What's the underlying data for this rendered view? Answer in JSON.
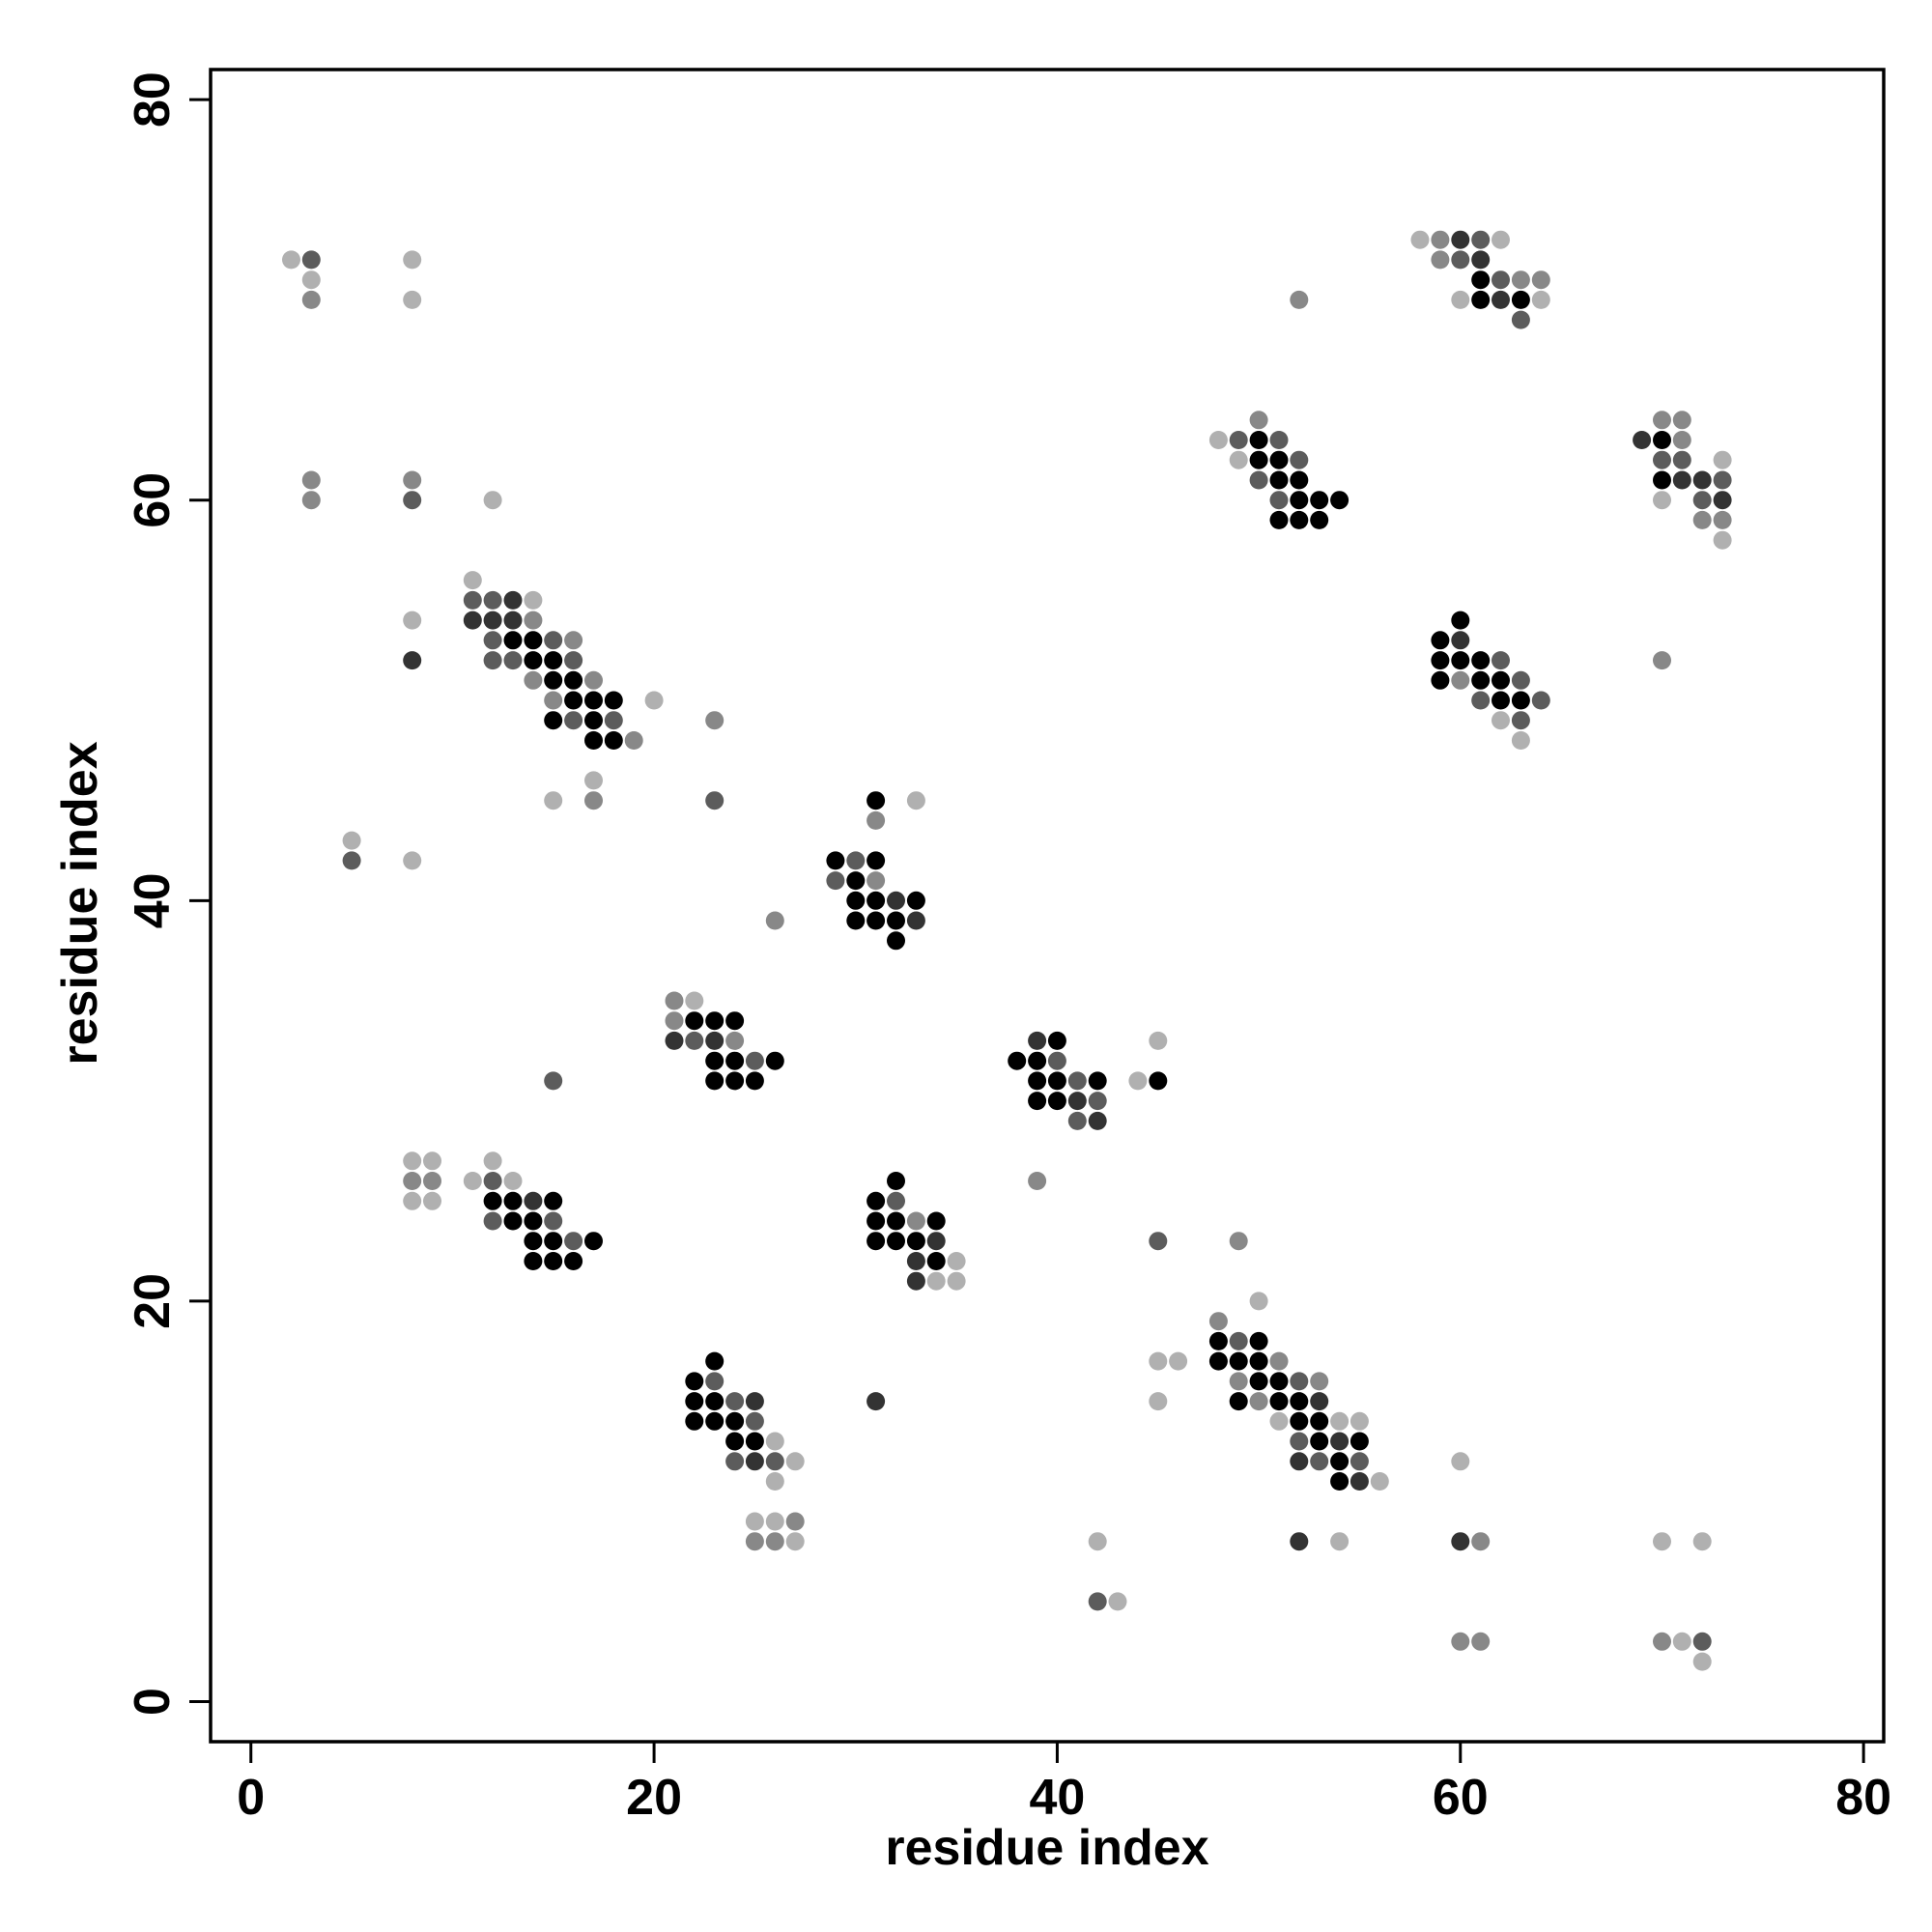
{
  "chart_data": {
    "type": "scatter",
    "title": "",
    "xlabel": "residue index",
    "ylabel": "residue index",
    "xlim": [
      -2,
      81
    ],
    "ylim": [
      -2,
      81.5
    ],
    "xticks": [
      0,
      20,
      40,
      60,
      80
    ],
    "yticks": [
      0,
      20,
      40,
      60,
      80
    ],
    "grid": false,
    "legend": "none",
    "shade_colors": {
      "1": "#000000",
      "2": "#333333",
      "3": "#5c5c5c",
      "4": "#888888",
      "5": "#b0b0b0"
    },
    "points": [
      [
        2,
        72,
        5
      ],
      [
        3,
        72,
        3
      ],
      [
        3,
        71,
        5
      ],
      [
        3,
        70,
        4
      ],
      [
        8,
        72,
        5
      ],
      [
        8,
        70,
        5
      ],
      [
        3,
        61,
        4
      ],
      [
        3,
        60,
        4
      ],
      [
        8,
        61,
        4
      ],
      [
        8,
        60,
        3
      ],
      [
        12,
        60,
        5
      ],
      [
        8,
        54,
        5
      ],
      [
        8,
        52,
        2
      ],
      [
        5,
        43,
        5
      ],
      [
        5,
        42,
        3
      ],
      [
        8,
        42,
        5
      ],
      [
        11,
        56,
        5
      ],
      [
        11,
        55,
        3
      ],
      [
        12,
        55,
        3
      ],
      [
        13,
        55,
        2
      ],
      [
        14,
        55,
        5
      ],
      [
        11,
        54,
        2
      ],
      [
        12,
        54,
        2
      ],
      [
        13,
        54,
        2
      ],
      [
        14,
        54,
        4
      ],
      [
        12,
        53,
        3
      ],
      [
        13,
        53,
        1
      ],
      [
        14,
        53,
        1
      ],
      [
        15,
        53,
        3
      ],
      [
        16,
        53,
        4
      ],
      [
        12,
        52,
        3
      ],
      [
        13,
        52,
        3
      ],
      [
        14,
        52,
        1
      ],
      [
        15,
        52,
        1
      ],
      [
        16,
        52,
        3
      ],
      [
        14,
        51,
        4
      ],
      [
        15,
        51,
        1
      ],
      [
        16,
        51,
        1
      ],
      [
        17,
        51,
        4
      ],
      [
        15,
        50,
        4
      ],
      [
        16,
        50,
        1
      ],
      [
        17,
        50,
        1
      ],
      [
        18,
        50,
        1
      ],
      [
        20,
        50,
        5
      ],
      [
        15,
        49,
        1
      ],
      [
        16,
        49,
        3
      ],
      [
        17,
        49,
        1
      ],
      [
        18,
        49,
        3
      ],
      [
        23,
        49,
        4
      ],
      [
        17,
        48,
        1
      ],
      [
        18,
        48,
        1
      ],
      [
        19,
        48,
        4
      ],
      [
        17,
        46,
        5
      ],
      [
        15,
        45,
        5
      ],
      [
        17,
        45,
        4
      ],
      [
        23,
        45,
        3
      ],
      [
        31,
        45,
        1
      ],
      [
        33,
        45,
        5
      ],
      [
        31,
        44,
        4
      ],
      [
        29,
        42,
        1
      ],
      [
        30,
        42,
        3
      ],
      [
        31,
        42,
        1
      ],
      [
        29,
        41,
        3
      ],
      [
        30,
        41,
        1
      ],
      [
        31,
        41,
        4
      ],
      [
        30,
        40,
        1
      ],
      [
        31,
        40,
        1
      ],
      [
        32,
        40,
        2
      ],
      [
        33,
        40,
        1
      ],
      [
        30,
        39,
        1
      ],
      [
        31,
        39,
        1
      ],
      [
        32,
        39,
        1
      ],
      [
        33,
        39,
        2
      ],
      [
        26,
        39,
        4
      ],
      [
        32,
        38,
        1
      ],
      [
        21,
        35,
        4
      ],
      [
        22,
        35,
        5
      ],
      [
        21,
        34,
        4
      ],
      [
        22,
        34,
        1
      ],
      [
        23,
        34,
        1
      ],
      [
        24,
        34,
        1
      ],
      [
        21,
        33,
        2
      ],
      [
        22,
        33,
        3
      ],
      [
        23,
        33,
        2
      ],
      [
        24,
        33,
        4
      ],
      [
        23,
        32,
        1
      ],
      [
        24,
        32,
        1
      ],
      [
        25,
        32,
        3
      ],
      [
        26,
        32,
        1
      ],
      [
        23,
        31,
        1
      ],
      [
        24,
        31,
        1
      ],
      [
        25,
        31,
        1
      ],
      [
        15,
        31,
        3
      ],
      [
        39,
        33,
        2
      ],
      [
        40,
        33,
        1
      ],
      [
        45,
        33,
        5
      ],
      [
        38,
        32,
        1
      ],
      [
        39,
        32,
        1
      ],
      [
        40,
        32,
        3
      ],
      [
        39,
        31,
        1
      ],
      [
        40,
        31,
        1
      ],
      [
        41,
        31,
        3
      ],
      [
        42,
        31,
        1
      ],
      [
        44,
        31,
        5
      ],
      [
        45,
        31,
        1
      ],
      [
        39,
        30,
        1
      ],
      [
        40,
        30,
        1
      ],
      [
        41,
        30,
        2
      ],
      [
        42,
        30,
        3
      ],
      [
        41,
        29,
        3
      ],
      [
        42,
        29,
        2
      ],
      [
        39,
        26,
        4
      ],
      [
        8,
        27,
        5
      ],
      [
        9,
        27,
        5
      ],
      [
        12,
        27,
        5
      ],
      [
        8,
        26,
        4
      ],
      [
        9,
        26,
        4
      ],
      [
        11,
        26,
        5
      ],
      [
        12,
        26,
        3
      ],
      [
        13,
        26,
        5
      ],
      [
        8,
        25,
        5
      ],
      [
        9,
        25,
        5
      ],
      [
        12,
        25,
        1
      ],
      [
        13,
        25,
        1
      ],
      [
        14,
        25,
        2
      ],
      [
        15,
        25,
        1
      ],
      [
        12,
        24,
        3
      ],
      [
        13,
        24,
        1
      ],
      [
        14,
        24,
        1
      ],
      [
        15,
        24,
        3
      ],
      [
        14,
        23,
        1
      ],
      [
        15,
        23,
        1
      ],
      [
        16,
        23,
        3
      ],
      [
        17,
        23,
        1
      ],
      [
        14,
        22,
        1
      ],
      [
        15,
        22,
        1
      ],
      [
        16,
        22,
        1
      ],
      [
        32,
        26,
        1
      ],
      [
        31,
        25,
        1
      ],
      [
        32,
        25,
        3
      ],
      [
        31,
        24,
        1
      ],
      [
        32,
        24,
        1
      ],
      [
        33,
        24,
        4
      ],
      [
        34,
        24,
        1
      ],
      [
        31,
        23,
        1
      ],
      [
        32,
        23,
        1
      ],
      [
        33,
        23,
        1
      ],
      [
        34,
        23,
        2
      ],
      [
        33,
        22,
        2
      ],
      [
        34,
        22,
        1
      ],
      [
        35,
        22,
        5
      ],
      [
        33,
        21,
        2
      ],
      [
        34,
        21,
        5
      ],
      [
        35,
        21,
        5
      ],
      [
        45,
        23,
        3
      ],
      [
        49,
        23,
        4
      ],
      [
        50,
        20,
        5
      ],
      [
        48,
        19,
        4
      ],
      [
        48,
        18,
        1
      ],
      [
        49,
        18,
        3
      ],
      [
        50,
        18,
        1
      ],
      [
        45,
        17,
        5
      ],
      [
        46,
        17,
        5
      ],
      [
        48,
        17,
        1
      ],
      [
        49,
        17,
        1
      ],
      [
        50,
        17,
        1
      ],
      [
        51,
        17,
        4
      ],
      [
        49,
        16,
        4
      ],
      [
        50,
        16,
        1
      ],
      [
        51,
        16,
        1
      ],
      [
        52,
        16,
        3
      ],
      [
        53,
        16,
        4
      ],
      [
        45,
        15,
        5
      ],
      [
        49,
        15,
        1
      ],
      [
        50,
        15,
        4
      ],
      [
        51,
        15,
        1
      ],
      [
        52,
        15,
        1
      ],
      [
        53,
        15,
        2
      ],
      [
        51,
        14,
        5
      ],
      [
        52,
        14,
        1
      ],
      [
        53,
        14,
        1
      ],
      [
        54,
        14,
        5
      ],
      [
        55,
        14,
        5
      ],
      [
        52,
        13,
        3
      ],
      [
        53,
        13,
        1
      ],
      [
        54,
        13,
        2
      ],
      [
        55,
        13,
        1
      ],
      [
        52,
        12,
        2
      ],
      [
        53,
        12,
        3
      ],
      [
        54,
        12,
        1
      ],
      [
        55,
        12,
        3
      ],
      [
        54,
        11,
        1
      ],
      [
        55,
        11,
        2
      ],
      [
        56,
        11,
        5
      ],
      [
        52,
        8,
        2
      ],
      [
        54,
        8,
        5
      ],
      [
        23,
        17,
        1
      ],
      [
        22,
        16,
        1
      ],
      [
        23,
        16,
        3
      ],
      [
        22,
        15,
        1
      ],
      [
        23,
        15,
        1
      ],
      [
        24,
        15,
        3
      ],
      [
        25,
        15,
        2
      ],
      [
        22,
        14,
        1
      ],
      [
        23,
        14,
        1
      ],
      [
        24,
        14,
        1
      ],
      [
        25,
        14,
        3
      ],
      [
        24,
        13,
        1
      ],
      [
        25,
        13,
        1
      ],
      [
        26,
        13,
        5
      ],
      [
        24,
        12,
        3
      ],
      [
        25,
        12,
        2
      ],
      [
        26,
        12,
        3
      ],
      [
        27,
        12,
        5
      ],
      [
        26,
        11,
        5
      ],
      [
        25,
        9,
        5
      ],
      [
        26,
        9,
        5
      ],
      [
        27,
        9,
        4
      ],
      [
        25,
        8,
        4
      ],
      [
        26,
        8,
        4
      ],
      [
        27,
        8,
        5
      ],
      [
        31,
        15,
        2
      ],
      [
        42,
        8,
        5
      ],
      [
        42,
        5,
        3
      ],
      [
        43,
        5,
        5
      ],
      [
        60,
        12,
        5
      ],
      [
        60,
        8,
        2
      ],
      [
        61,
        8,
        4
      ],
      [
        60,
        3,
        4
      ],
      [
        61,
        3,
        4
      ],
      [
        70,
        8,
        5
      ],
      [
        72,
        8,
        5
      ],
      [
        70,
        3,
        4
      ],
      [
        71,
        3,
        5
      ],
      [
        72,
        3,
        3
      ],
      [
        72,
        2,
        5
      ],
      [
        58,
        73,
        5
      ],
      [
        59,
        73,
        4
      ],
      [
        60,
        73,
        2
      ],
      [
        61,
        73,
        3
      ],
      [
        62,
        73,
        5
      ],
      [
        59,
        72,
        4
      ],
      [
        60,
        72,
        3
      ],
      [
        61,
        72,
        2
      ],
      [
        61,
        71,
        1
      ],
      [
        62,
        71,
        3
      ],
      [
        63,
        71,
        4
      ],
      [
        64,
        71,
        4
      ],
      [
        60,
        70,
        5
      ],
      [
        61,
        70,
        1
      ],
      [
        62,
        70,
        2
      ],
      [
        63,
        70,
        1
      ],
      [
        64,
        70,
        5
      ],
      [
        63,
        69,
        3
      ],
      [
        52,
        70,
        4
      ],
      [
        50,
        64,
        4
      ],
      [
        48,
        63,
        5
      ],
      [
        49,
        63,
        3
      ],
      [
        50,
        63,
        1
      ],
      [
        51,
        63,
        3
      ],
      [
        49,
        62,
        5
      ],
      [
        50,
        62,
        1
      ],
      [
        51,
        62,
        1
      ],
      [
        52,
        62,
        3
      ],
      [
        50,
        61,
        3
      ],
      [
        51,
        61,
        1
      ],
      [
        52,
        61,
        1
      ],
      [
        51,
        60,
        3
      ],
      [
        52,
        60,
        1
      ],
      [
        53,
        60,
        1
      ],
      [
        54,
        60,
        1
      ],
      [
        51,
        59,
        1
      ],
      [
        52,
        59,
        1
      ],
      [
        53,
        59,
        1
      ],
      [
        70,
        64,
        4
      ],
      [
        71,
        64,
        4
      ],
      [
        69,
        63,
        2
      ],
      [
        70,
        63,
        1
      ],
      [
        71,
        63,
        4
      ],
      [
        70,
        62,
        3
      ],
      [
        71,
        62,
        3
      ],
      [
        73,
        62,
        5
      ],
      [
        70,
        61,
        1
      ],
      [
        71,
        61,
        2
      ],
      [
        72,
        61,
        2
      ],
      [
        73,
        61,
        3
      ],
      [
        70,
        60,
        5
      ],
      [
        72,
        60,
        3
      ],
      [
        73,
        60,
        2
      ],
      [
        72,
        59,
        4
      ],
      [
        73,
        59,
        4
      ],
      [
        73,
        58,
        5
      ],
      [
        60,
        54,
        1
      ],
      [
        59,
        53,
        1
      ],
      [
        60,
        53,
        2
      ],
      [
        59,
        52,
        1
      ],
      [
        60,
        52,
        1
      ],
      [
        61,
        52,
        1
      ],
      [
        62,
        52,
        3
      ],
      [
        59,
        51,
        1
      ],
      [
        60,
        51,
        4
      ],
      [
        61,
        51,
        1
      ],
      [
        62,
        51,
        1
      ],
      [
        63,
        51,
        3
      ],
      [
        61,
        50,
        3
      ],
      [
        62,
        50,
        1
      ],
      [
        63,
        50,
        1
      ],
      [
        64,
        50,
        3
      ],
      [
        62,
        49,
        5
      ],
      [
        63,
        49,
        3
      ],
      [
        63,
        48,
        5
      ],
      [
        70,
        52,
        4
      ]
    ]
  }
}
